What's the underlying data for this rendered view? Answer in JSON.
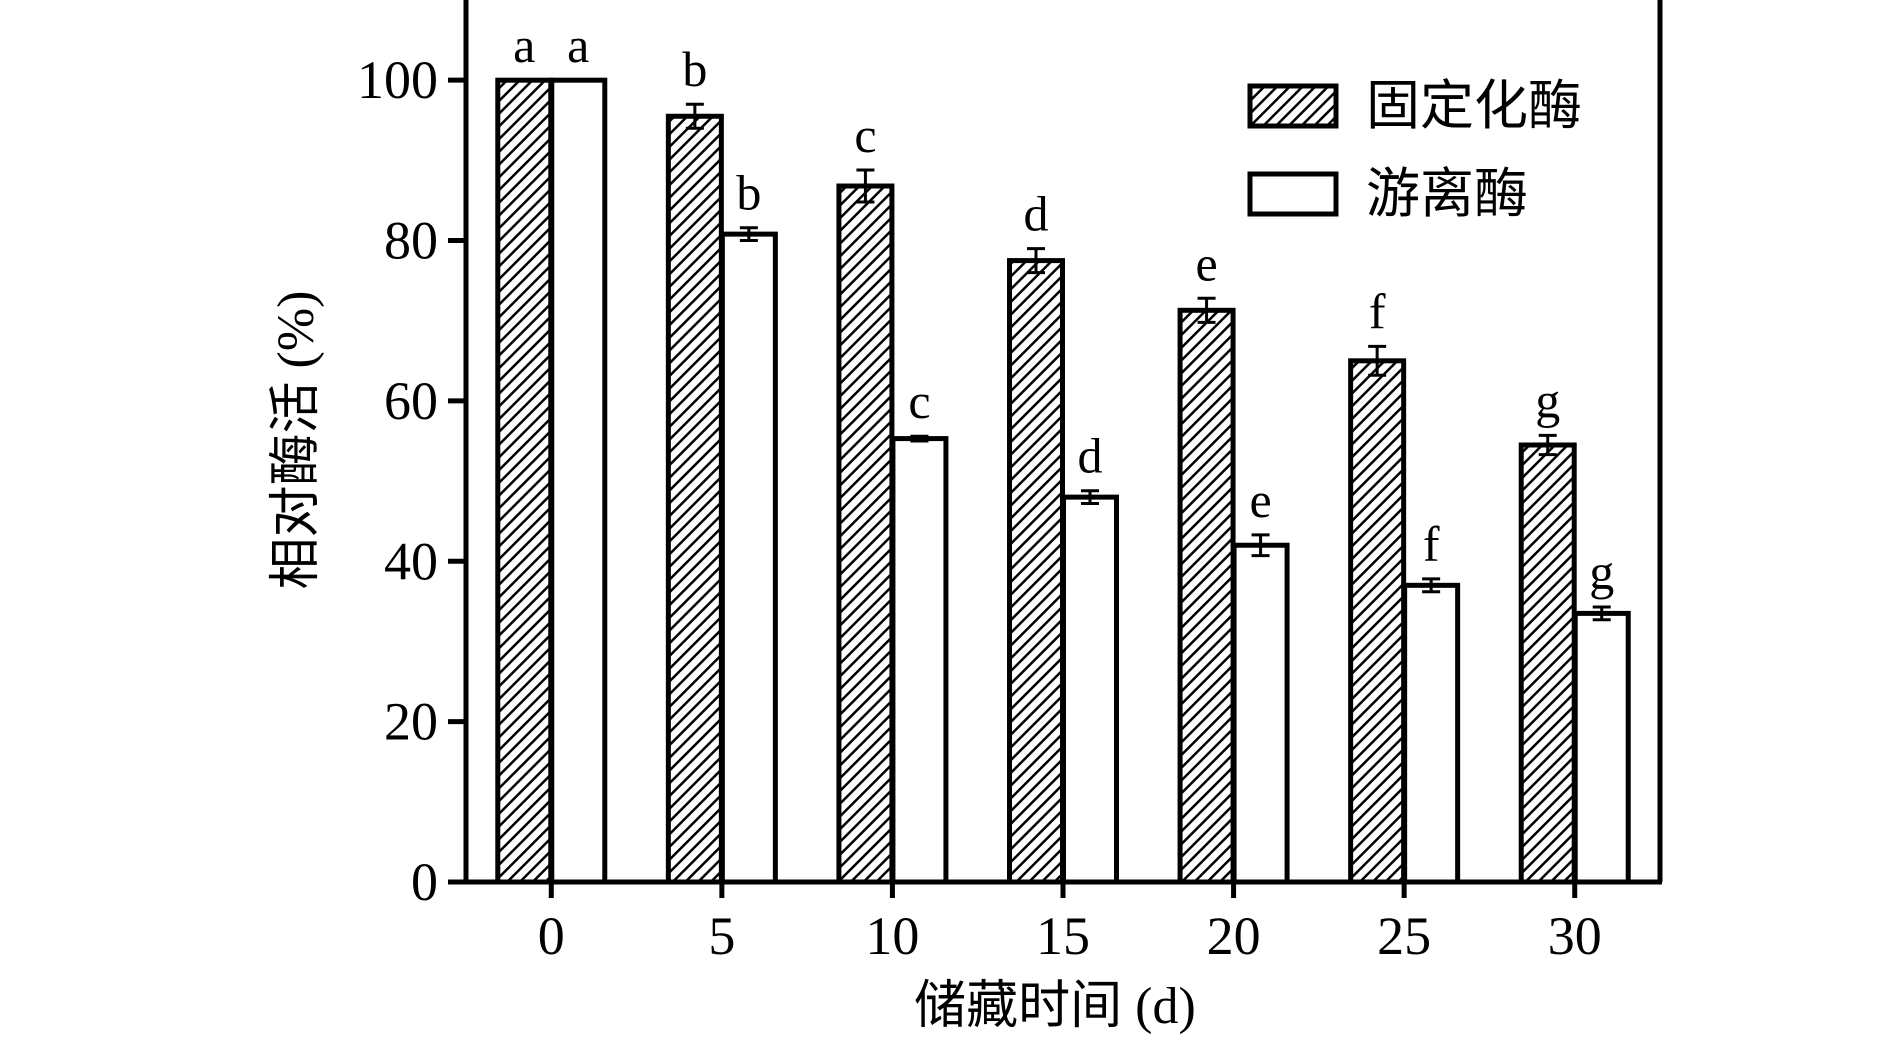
{
  "chart_data": {
    "type": "bar",
    "xlabel": "储藏时间 (d)",
    "ylabel": "相对酶活 (%)",
    "ylim": [
      0,
      110
    ],
    "yticks": [
      "0",
      "20",
      "40",
      "60",
      "80",
      "100"
    ],
    "categories": [
      "0",
      "5",
      "10",
      "15",
      "20",
      "25",
      "30"
    ],
    "grid": false,
    "legend_position": "top-right",
    "series": [
      {
        "name": "固定化酶",
        "pattern": "diagonal-hatch",
        "values": [
          100,
          95.5,
          86.8,
          77.5,
          71.3,
          65.0,
          54.5
        ],
        "errors": [
          0,
          1.5,
          2.0,
          1.5,
          1.5,
          1.8,
          1.2
        ],
        "letters": [
          "a",
          "b",
          "c",
          "d",
          "e",
          "f",
          "g"
        ]
      },
      {
        "name": "游离酶",
        "pattern": "none",
        "values": [
          100,
          80.8,
          55.3,
          48.0,
          42.0,
          37.0,
          33.5
        ],
        "errors": [
          0,
          0.8,
          0.3,
          0.8,
          1.3,
          0.8,
          0.8
        ],
        "letters": [
          "a",
          "b",
          "c",
          "d",
          "e",
          "f",
          "g"
        ]
      }
    ]
  },
  "colors": {
    "stroke": "#000000",
    "background": "#ffffff",
    "hatch_fill": "#ffffff"
  }
}
